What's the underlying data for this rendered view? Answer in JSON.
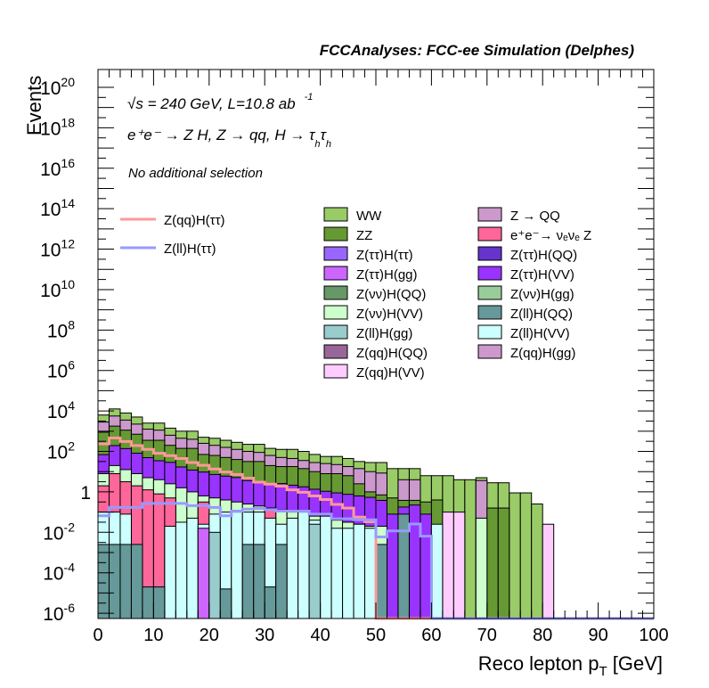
{
  "chart_data": {
    "type": "bar",
    "subtype": "stacked-histogram-log",
    "title": "FCCAnalyses: FCC-ee Simulation (Delphes)",
    "xlabel": "Reco lepton p",
    "xlabel_sub": "T",
    "xlabel_unit": " [GeV]",
    "ylabel": "Events",
    "xlim": [
      0,
      100
    ],
    "ylim_log10": [
      -6.26,
      20.88
    ],
    "yscale": "log",
    "bin_width": 2,
    "grid": false,
    "annotations": {
      "energy_sqrt": "√",
      "energy": "s = 240 GeV, L=10.8 ab",
      "energy_sup": "-1",
      "process": "e⁺e⁻ → Z H, Z  → qq, H  → τ",
      "process_sub1": "h",
      "process_tau2": "τ",
      "process_sub2": "h",
      "selection": "No additional selection"
    },
    "x_ticks": [
      "0",
      "10",
      "20",
      "30",
      "40",
      "50",
      "60",
      "70",
      "80",
      "90",
      "100"
    ],
    "y_ticks": [
      {
        "exp": 20,
        "base": "10",
        "sup": "20"
      },
      {
        "exp": 18,
        "base": "10",
        "sup": "18"
      },
      {
        "exp": 16,
        "base": "10",
        "sup": "16"
      },
      {
        "exp": 14,
        "base": "10",
        "sup": "14"
      },
      {
        "exp": 12,
        "base": "10",
        "sup": "12"
      },
      {
        "exp": 10,
        "base": "10",
        "sup": "10"
      },
      {
        "exp": 8,
        "base": "10",
        "sup": "8"
      },
      {
        "exp": 6,
        "base": "10",
        "sup": "6"
      },
      {
        "exp": 4,
        "base": "10",
        "sup": "4"
      },
      {
        "exp": 2,
        "base": "10",
        "sup": "2"
      },
      {
        "exp": 0,
        "base": "1",
        "sup": ""
      },
      {
        "exp": -2,
        "base": "10",
        "sup": "-2"
      },
      {
        "exp": -4,
        "base": "10",
        "sup": "-4"
      },
      {
        "exp": -6,
        "base": "10",
        "sup": "-6"
      }
    ],
    "value_encoding": "log10 of stacked cumulative event count per 2 GeV bin (null = empty)",
    "stack_layers": [
      {
        "name": "WW",
        "color": "#99cc66",
        "log10_top": [
          3.8,
          4.1,
          3.9,
          3.7,
          3.4,
          3.4,
          3.15,
          3.0,
          3.0,
          2.7,
          2.65,
          2.55,
          2.45,
          2.35,
          2.35,
          2.15,
          2.1,
          2.1,
          2.0,
          1.85,
          1.75,
          1.75,
          1.65,
          1.5,
          1.45,
          1.45,
          1.15,
          1.15,
          1.15,
          0.8,
          0.8,
          0.8,
          0.6,
          0.6,
          0.7,
          0.45,
          0.45,
          -0.05,
          -0.05,
          -0.6,
          null
        ]
      },
      {
        "name": "Z → QQ",
        "color": "#cc99cc",
        "log10_top": [
          3.45,
          3.75,
          3.55,
          3.35,
          3.1,
          3.05,
          2.8,
          2.65,
          2.6,
          2.4,
          2.3,
          2.2,
          2.1,
          2.0,
          1.95,
          1.8,
          1.7,
          1.65,
          1.55,
          1.45,
          1.4,
          1.35,
          1.25,
          1.15,
          1.0,
          0.93,
          null,
          0.6,
          0.6,
          null,
          null,
          null,
          null,
          null,
          0.56,
          null,
          null,
          null,
          null,
          null,
          null
        ]
      },
      {
        "name": "ZZ",
        "color": "#669933",
        "log10_top": [
          2.95,
          3.25,
          3.05,
          2.85,
          2.55,
          2.55,
          2.3,
          2.15,
          2.15,
          1.85,
          1.8,
          1.7,
          1.6,
          1.5,
          1.5,
          1.3,
          1.25,
          1.25,
          1.15,
          1.0,
          0.9,
          0.9,
          0.8,
          0.4,
          0.0,
          -0.15,
          -0.3,
          -0.42,
          -0.42,
          -0.5,
          -0.4,
          null,
          null,
          null,
          null,
          -0.8,
          -0.8,
          null,
          null,
          null,
          null
        ]
      },
      {
        "name": "Z(ττ)H(VV)",
        "color": "#9933ff",
        "log10_top": [
          1.84,
          2.29,
          2.14,
          1.91,
          1.69,
          1.54,
          1.46,
          1.23,
          1.08,
          0.98,
          0.86,
          0.78,
          0.71,
          0.56,
          0.48,
          0.41,
          0.41,
          0.33,
          0.25,
          0.13,
          0.03,
          -0.05,
          -0.12,
          -0.2,
          -0.27,
          -0.42,
          -1.1,
          -0.75,
          -0.65,
          -1.1,
          -1.7,
          -1.7,
          null,
          null,
          null,
          null,
          null,
          null,
          null,
          null,
          null
        ]
      },
      {
        "name": "Z(νν)H(VV)",
        "color": "#ccffcc",
        "log10_top": [
          0.9,
          1.3,
          1.1,
          0.9,
          0.7,
          0.6,
          0.4,
          0.2,
          0.0,
          -0.2,
          -0.3,
          -0.4,
          -0.5,
          -0.6,
          -0.7,
          -0.8,
          -0.9,
          -1.0,
          -1.1,
          -1.2,
          -1.3,
          -1.4,
          -1.5,
          -1.6,
          -1.7,
          -1.7,
          null,
          null,
          null,
          null,
          null,
          null,
          null,
          null,
          -1.3,
          null,
          null,
          null,
          null,
          null,
          null
        ]
      },
      {
        "name": "e⁺e⁻→ νₑνₑ Z",
        "color": "#ff6699",
        "log10_top": [
          0.3,
          0.9,
          0.5,
          0.3,
          0.1,
          -0.1,
          -0.3,
          null,
          null,
          -0.5,
          null,
          null,
          null,
          null,
          null,
          -0.8,
          null,
          null,
          null,
          null,
          null,
          null,
          null,
          null,
          null,
          null,
          null,
          null,
          null,
          null,
          null,
          null,
          null,
          null,
          null,
          null,
          null,
          null,
          null,
          null,
          null
        ]
      },
      {
        "name": "Z(qq)H(VV)",
        "color": "#ffccff",
        "log10_top": [
          null,
          null,
          null,
          null,
          null,
          null,
          null,
          null,
          null,
          null,
          null,
          null,
          null,
          null,
          null,
          null,
          null,
          null,
          null,
          null,
          null,
          null,
          null,
          null,
          null,
          null,
          null,
          null,
          null,
          null,
          null,
          -1.0,
          -1.0,
          null,
          null,
          null,
          null,
          null,
          null,
          null,
          -1.6
        ]
      },
      {
        "name": "Z(ll)H(VV)",
        "color": "#ccffff",
        "log10_top": [
          -1.0,
          -1.0,
          -1.1,
          null,
          null,
          null,
          -1.7,
          -1.5,
          -1.3,
          -1.6,
          -1.1,
          -1.0,
          -1.0,
          -1.0,
          -1.0,
          -1.3,
          -1.6,
          -1.3,
          -1.0,
          -1.4,
          -1.2,
          -1.8,
          -1.8,
          -1.6,
          -1.8,
          null,
          null,
          null,
          null,
          null,
          -1.6,
          null,
          null,
          null,
          null,
          null,
          null,
          null,
          null,
          null,
          null
        ]
      },
      {
        "name": "Z(ττ)H(gg)",
        "color": "#cc66ff",
        "log10_top": [
          null,
          null,
          null,
          null,
          null,
          null,
          null,
          null,
          null,
          -1.8,
          null,
          null,
          null,
          null,
          null,
          null,
          null,
          null,
          null,
          null,
          null,
          null,
          null,
          null,
          null,
          null,
          null,
          null,
          null,
          null,
          null,
          null,
          null,
          null,
          null,
          null,
          null,
          null,
          null,
          null,
          null
        ]
      },
      {
        "name": "Z(ll)H(gg)",
        "color": "#99cccc",
        "log10_top": [
          null,
          null,
          null,
          null,
          null,
          null,
          null,
          null,
          null,
          null,
          -2.0,
          null,
          null,
          null,
          null,
          null,
          null,
          null,
          null,
          -1.6,
          null,
          null,
          null,
          null,
          null,
          null,
          null,
          null,
          null,
          null,
          null,
          null,
          null,
          null,
          null,
          null,
          null,
          null,
          null,
          null,
          null
        ]
      },
      {
        "name": "Z(ll)H(QQ)",
        "color": "#669999",
        "log10_top": [
          -2.6,
          -2.6,
          -2.6,
          -2.6,
          -4.7,
          -4.7,
          null,
          null,
          null,
          null,
          null,
          -4.8,
          null,
          -2.6,
          -2.6,
          -4.7,
          -2.6,
          null,
          null,
          null,
          null,
          null,
          null,
          null,
          null,
          -2.6,
          null,
          -1.1,
          null,
          null,
          null,
          null,
          null,
          null,
          null,
          null,
          null,
          null,
          null,
          null,
          null
        ]
      }
    ],
    "lines": [
      {
        "name": "Z(qq)H(ττ)",
        "color": "#ff9999",
        "log10_values": [
          2.37,
          2.67,
          2.49,
          2.29,
          2.1,
          1.91,
          1.79,
          1.65,
          1.45,
          1.31,
          1.13,
          0.98,
          0.86,
          0.68,
          0.48,
          0.38,
          0.28,
          0.1,
          -0.02,
          -0.2,
          -0.38,
          -0.62,
          -0.8,
          -1.25,
          -1.48
        ]
      },
      {
        "name": "Z(ll)H(ττ)",
        "color": "#9999ff",
        "log10_values": [
          -1.18,
          -0.77,
          -0.77,
          -0.77,
          -0.57,
          -0.57,
          -0.57,
          -0.57,
          -0.68,
          -0.68,
          -0.77,
          -1.18,
          -0.95,
          -0.85,
          -0.82,
          -0.88,
          -0.95,
          -0.95,
          -0.95,
          -1.1,
          -1.1,
          -1.33,
          -1.33,
          -1.38,
          -1.38,
          -2.23,
          -1.93,
          -1.93,
          -1.59,
          -2.19
        ]
      }
    ],
    "legend_lines": [
      "Z(qq)H(ττ)",
      "Z(ll)H(ττ)"
    ],
    "legend_fills": [
      {
        "label": "WW",
        "color": "#99cc66"
      },
      {
        "label": "Z → QQ",
        "color": "#cc99cc"
      },
      {
        "label": "ZZ",
        "color": "#669933"
      },
      {
        "label": "e⁺e⁻→ νₑνₑ Z",
        "color": "#ff6699"
      },
      {
        "label": "Z(ττ)H(ττ)",
        "color": "#9966ff"
      },
      {
        "label": "Z(ττ)H(QQ)",
        "color": "#6633cc"
      },
      {
        "label": "Z(ττ)H(gg)",
        "color": "#cc66ff"
      },
      {
        "label": "Z(ττ)H(VV)",
        "color": "#9933ff"
      },
      {
        "label": "Z(νν)H(QQ)",
        "color": "#669966"
      },
      {
        "label": "Z(νν)H(gg)",
        "color": "#99cc99"
      },
      {
        "label": "Z(νν)H(VV)",
        "color": "#ccffcc"
      },
      {
        "label": "Z(ll)H(QQ)",
        "color": "#669999"
      },
      {
        "label": "Z(ll)H(gg)",
        "color": "#99cccc"
      },
      {
        "label": "Z(ll)H(VV)",
        "color": "#ccffff"
      },
      {
        "label": "Z(qq)H(QQ)",
        "color": "#996699"
      },
      {
        "label": "Z(qq)H(gg)",
        "color": "#cc99cc"
      },
      {
        "label": "Z(qq)H(VV)",
        "color": "#ffccff"
      }
    ]
  }
}
